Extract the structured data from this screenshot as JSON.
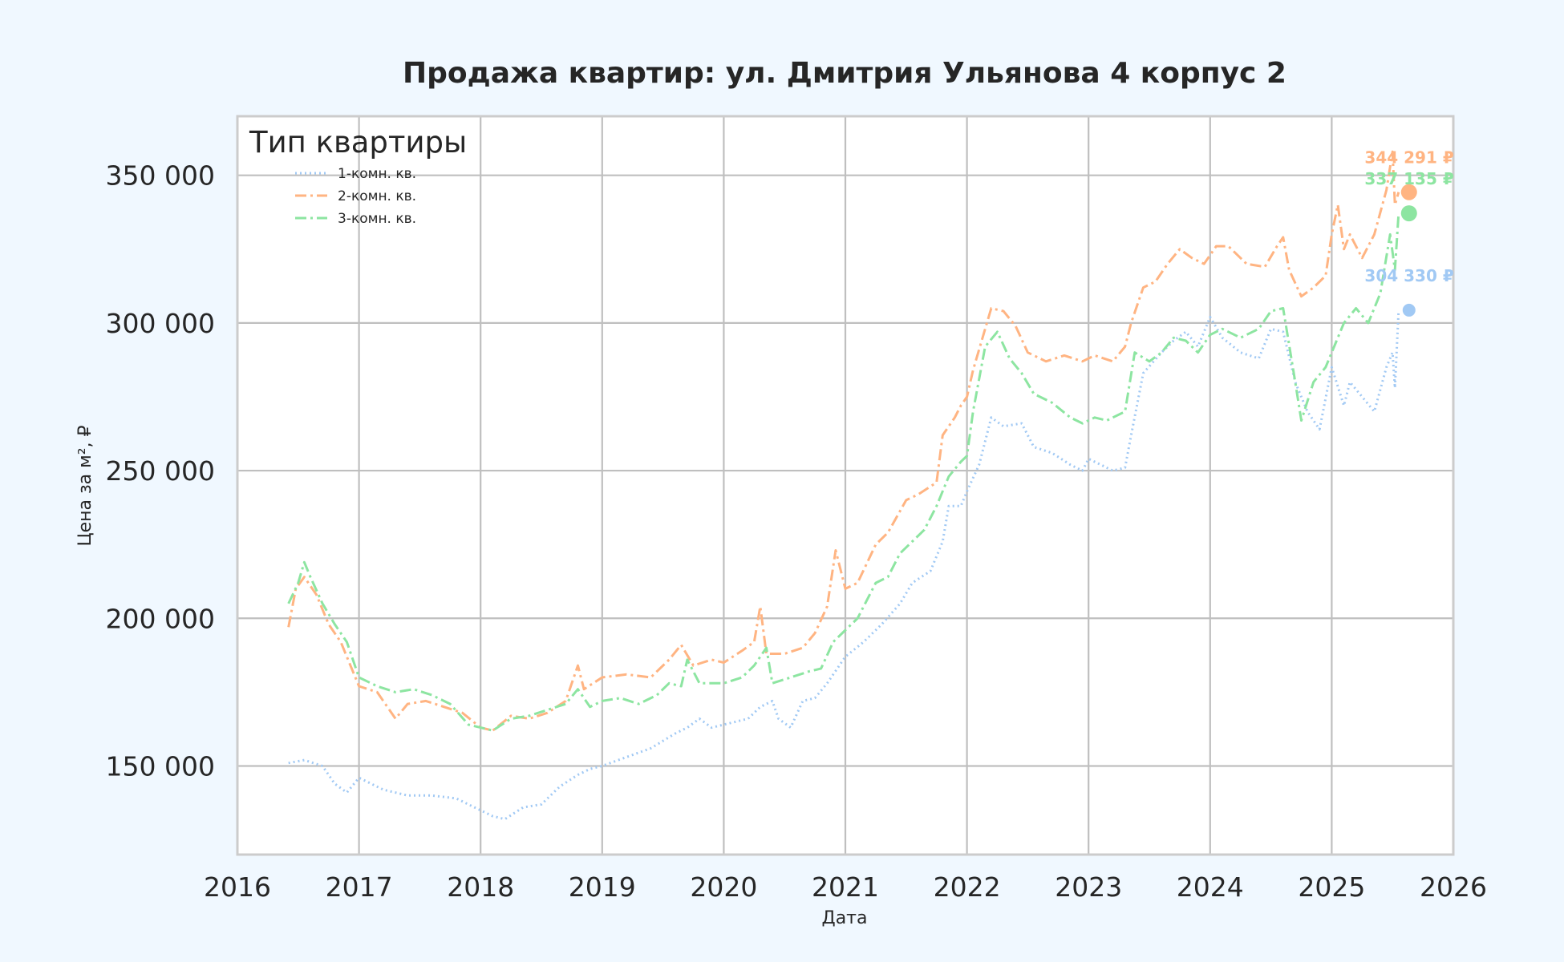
{
  "chart_data": {
    "type": "line",
    "title": "Продажа квартир: ул. Дмитрия Ульянова 4 корпус 2",
    "xlabel": "Дата",
    "ylabel": "Цена за м², ₽",
    "xlim": [
      2016,
      2026
    ],
    "ylim": [
      120000,
      370000
    ],
    "x_ticks": [
      "2016",
      "2017",
      "2018",
      "2019",
      "2020",
      "2021",
      "2022",
      "2023",
      "2024",
      "2025",
      "2026"
    ],
    "y_ticks": [
      150000,
      200000,
      250000,
      300000,
      350000
    ],
    "y_tick_labels": [
      "150 000",
      "200 000",
      "250 000",
      "300 000",
      "350 000"
    ],
    "grid": true,
    "legend": {
      "title": "Тип квартиры",
      "position": "top-left"
    },
    "series": [
      {
        "name": "1-комн. кв.",
        "color": "#a1c9f4",
        "style": "dotted",
        "points": [
          [
            2016.42,
            151000
          ],
          [
            2016.55,
            152000
          ],
          [
            2016.7,
            150000
          ],
          [
            2016.8,
            144000
          ],
          [
            2016.9,
            141000
          ],
          [
            2017.0,
            146000
          ],
          [
            2017.2,
            142000
          ],
          [
            2017.4,
            140000
          ],
          [
            2017.6,
            140000
          ],
          [
            2017.8,
            139000
          ],
          [
            2017.95,
            136000
          ],
          [
            2018.1,
            133000
          ],
          [
            2018.2,
            132000
          ],
          [
            2018.35,
            136000
          ],
          [
            2018.5,
            137000
          ],
          [
            2018.65,
            143000
          ],
          [
            2018.8,
            147000
          ],
          [
            2018.9,
            149000
          ],
          [
            2019.0,
            150000
          ],
          [
            2019.2,
            153000
          ],
          [
            2019.4,
            156000
          ],
          [
            2019.6,
            161000
          ],
          [
            2019.7,
            163000
          ],
          [
            2019.8,
            166000
          ],
          [
            2019.9,
            163000
          ],
          [
            2020.0,
            164000
          ],
          [
            2020.2,
            166000
          ],
          [
            2020.3,
            170000
          ],
          [
            2020.4,
            172000
          ],
          [
            2020.45,
            166000
          ],
          [
            2020.55,
            163000
          ],
          [
            2020.65,
            172000
          ],
          [
            2020.75,
            173000
          ],
          [
            2020.85,
            178000
          ],
          [
            2021.0,
            187000
          ],
          [
            2021.15,
            192000
          ],
          [
            2021.3,
            198000
          ],
          [
            2021.45,
            205000
          ],
          [
            2021.55,
            212000
          ],
          [
            2021.7,
            216000
          ],
          [
            2021.8,
            226000
          ],
          [
            2021.85,
            238000
          ],
          [
            2021.95,
            238000
          ],
          [
            2022.0,
            243000
          ],
          [
            2022.1,
            252000
          ],
          [
            2022.2,
            268000
          ],
          [
            2022.3,
            265000
          ],
          [
            2022.45,
            266000
          ],
          [
            2022.55,
            258000
          ],
          [
            2022.7,
            256000
          ],
          [
            2022.85,
            252000
          ],
          [
            2022.95,
            250000
          ],
          [
            2023.0,
            254000
          ],
          [
            2023.1,
            252000
          ],
          [
            2023.2,
            250000
          ],
          [
            2023.3,
            251000
          ],
          [
            2023.35,
            262000
          ],
          [
            2023.45,
            283000
          ],
          [
            2023.6,
            290000
          ],
          [
            2023.7,
            294000
          ],
          [
            2023.8,
            297000
          ],
          [
            2023.9,
            292000
          ],
          [
            2024.0,
            302000
          ],
          [
            2024.1,
            295000
          ],
          [
            2024.25,
            290000
          ],
          [
            2024.4,
            288000
          ],
          [
            2024.5,
            298000
          ],
          [
            2024.6,
            297000
          ],
          [
            2024.7,
            280000
          ],
          [
            2024.8,
            270000
          ],
          [
            2024.9,
            264000
          ],
          [
            2025.0,
            285000
          ],
          [
            2025.1,
            272000
          ],
          [
            2025.15,
            280000
          ],
          [
            2025.25,
            275000
          ],
          [
            2025.35,
            270000
          ],
          [
            2025.45,
            285000
          ],
          [
            2025.5,
            290000
          ],
          [
            2025.52,
            278000
          ],
          [
            2025.55,
            304330
          ]
        ],
        "last_value_label": "304 330 ₽"
      },
      {
        "name": "2-комн. кв.",
        "color": "#ffb482",
        "style": "dash-dot",
        "points": [
          [
            2016.42,
            197000
          ],
          [
            2016.48,
            210000
          ],
          [
            2016.55,
            214000
          ],
          [
            2016.65,
            208000
          ],
          [
            2016.75,
            198000
          ],
          [
            2016.85,
            192000
          ],
          [
            2016.95,
            182000
          ],
          [
            2017.0,
            177000
          ],
          [
            2017.15,
            175000
          ],
          [
            2017.3,
            166000
          ],
          [
            2017.4,
            171000
          ],
          [
            2017.55,
            172000
          ],
          [
            2017.7,
            170000
          ],
          [
            2017.85,
            168000
          ],
          [
            2018.0,
            163000
          ],
          [
            2018.1,
            162000
          ],
          [
            2018.25,
            167000
          ],
          [
            2018.4,
            166000
          ],
          [
            2018.55,
            168000
          ],
          [
            2018.7,
            172000
          ],
          [
            2018.8,
            184000
          ],
          [
            2018.85,
            176000
          ],
          [
            2019.0,
            180000
          ],
          [
            2019.2,
            181000
          ],
          [
            2019.4,
            180000
          ],
          [
            2019.55,
            186000
          ],
          [
            2019.65,
            191000
          ],
          [
            2019.75,
            184000
          ],
          [
            2019.9,
            186000
          ],
          [
            2020.0,
            185000
          ],
          [
            2020.15,
            189000
          ],
          [
            2020.25,
            192000
          ],
          [
            2020.3,
            204000
          ],
          [
            2020.35,
            188000
          ],
          [
            2020.5,
            188000
          ],
          [
            2020.65,
            190000
          ],
          [
            2020.75,
            195000
          ],
          [
            2020.85,
            204000
          ],
          [
            2020.92,
            223000
          ],
          [
            2021.0,
            210000
          ],
          [
            2021.1,
            212000
          ],
          [
            2021.25,
            225000
          ],
          [
            2021.35,
            229000
          ],
          [
            2021.5,
            240000
          ],
          [
            2021.6,
            242000
          ],
          [
            2021.75,
            246000
          ],
          [
            2021.8,
            262000
          ],
          [
            2021.9,
            268000
          ],
          [
            2021.95,
            272000
          ],
          [
            2022.0,
            275000
          ],
          [
            2022.05,
            284000
          ],
          [
            2022.15,
            298000
          ],
          [
            2022.2,
            305000
          ],
          [
            2022.3,
            304000
          ],
          [
            2022.4,
            299000
          ],
          [
            2022.5,
            290000
          ],
          [
            2022.65,
            287000
          ],
          [
            2022.8,
            289000
          ],
          [
            2022.95,
            287000
          ],
          [
            2023.05,
            289000
          ],
          [
            2023.2,
            287000
          ],
          [
            2023.3,
            292000
          ],
          [
            2023.35,
            300000
          ],
          [
            2023.45,
            312000
          ],
          [
            2023.55,
            314000
          ],
          [
            2023.65,
            320000
          ],
          [
            2023.75,
            325000
          ],
          [
            2023.85,
            322000
          ],
          [
            2023.95,
            320000
          ],
          [
            2024.05,
            326000
          ],
          [
            2024.15,
            326000
          ],
          [
            2024.3,
            320000
          ],
          [
            2024.45,
            319000
          ],
          [
            2024.55,
            326000
          ],
          [
            2024.6,
            329000
          ],
          [
            2024.65,
            318000
          ],
          [
            2024.75,
            309000
          ],
          [
            2024.85,
            312000
          ],
          [
            2024.95,
            316000
          ],
          [
            2025.0,
            330000
          ],
          [
            2025.05,
            340000
          ],
          [
            2025.1,
            325000
          ],
          [
            2025.15,
            330000
          ],
          [
            2025.25,
            322000
          ],
          [
            2025.35,
            330000
          ],
          [
            2025.45,
            345000
          ],
          [
            2025.5,
            358000
          ],
          [
            2025.52,
            340000
          ],
          [
            2025.55,
            344291
          ]
        ],
        "last_value_label": "344 291 ₽"
      },
      {
        "name": "3-комн. кв.",
        "color": "#8de5a1",
        "style": "dash-dot",
        "points": [
          [
            2016.42,
            205000
          ],
          [
            2016.5,
            212000
          ],
          [
            2016.55,
            219000
          ],
          [
            2016.6,
            214000
          ],
          [
            2016.7,
            205000
          ],
          [
            2016.8,
            198000
          ],
          [
            2016.9,
            192000
          ],
          [
            2017.0,
            180000
          ],
          [
            2017.15,
            177000
          ],
          [
            2017.3,
            175000
          ],
          [
            2017.45,
            176000
          ],
          [
            2017.6,
            174000
          ],
          [
            2017.75,
            171000
          ],
          [
            2017.9,
            164000
          ],
          [
            2018.0,
            163000
          ],
          [
            2018.1,
            162000
          ],
          [
            2018.25,
            166000
          ],
          [
            2018.4,
            167000
          ],
          [
            2018.55,
            169000
          ],
          [
            2018.7,
            171000
          ],
          [
            2018.8,
            176000
          ],
          [
            2018.9,
            170000
          ],
          [
            2019.0,
            172000
          ],
          [
            2019.15,
            173000
          ],
          [
            2019.3,
            171000
          ],
          [
            2019.45,
            174000
          ],
          [
            2019.55,
            178000
          ],
          [
            2019.65,
            177000
          ],
          [
            2019.7,
            186000
          ],
          [
            2019.8,
            178000
          ],
          [
            2020.0,
            178000
          ],
          [
            2020.15,
            180000
          ],
          [
            2020.25,
            184000
          ],
          [
            2020.35,
            190000
          ],
          [
            2020.4,
            178000
          ],
          [
            2020.55,
            180000
          ],
          [
            2020.7,
            182000
          ],
          [
            2020.8,
            183000
          ],
          [
            2020.9,
            192000
          ],
          [
            2021.0,
            196000
          ],
          [
            2021.1,
            200000
          ],
          [
            2021.25,
            212000
          ],
          [
            2021.35,
            214000
          ],
          [
            2021.45,
            222000
          ],
          [
            2021.55,
            226000
          ],
          [
            2021.65,
            230000
          ],
          [
            2021.75,
            238000
          ],
          [
            2021.85,
            248000
          ],
          [
            2021.95,
            253000
          ],
          [
            2022.0,
            255000
          ],
          [
            2022.05,
            270000
          ],
          [
            2022.15,
            292000
          ],
          [
            2022.25,
            297000
          ],
          [
            2022.35,
            288000
          ],
          [
            2022.45,
            283000
          ],
          [
            2022.55,
            276000
          ],
          [
            2022.7,
            273000
          ],
          [
            2022.85,
            268000
          ],
          [
            2022.95,
            266000
          ],
          [
            2023.05,
            268000
          ],
          [
            2023.15,
            267000
          ],
          [
            2023.3,
            270000
          ],
          [
            2023.38,
            290000
          ],
          [
            2023.5,
            287000
          ],
          [
            2023.6,
            290000
          ],
          [
            2023.7,
            295000
          ],
          [
            2023.8,
            294000
          ],
          [
            2023.9,
            290000
          ],
          [
            2024.0,
            296000
          ],
          [
            2024.1,
            298000
          ],
          [
            2024.25,
            295000
          ],
          [
            2024.4,
            298000
          ],
          [
            2024.5,
            304000
          ],
          [
            2024.6,
            305000
          ],
          [
            2024.7,
            280000
          ],
          [
            2024.75,
            267000
          ],
          [
            2024.85,
            280000
          ],
          [
            2024.95,
            285000
          ],
          [
            2025.0,
            290000
          ],
          [
            2025.1,
            300000
          ],
          [
            2025.2,
            305000
          ],
          [
            2025.3,
            300000
          ],
          [
            2025.4,
            310000
          ],
          [
            2025.48,
            330000
          ],
          [
            2025.52,
            318000
          ],
          [
            2025.55,
            337135
          ]
        ],
        "last_value_label": "337 135 ₽"
      }
    ]
  }
}
